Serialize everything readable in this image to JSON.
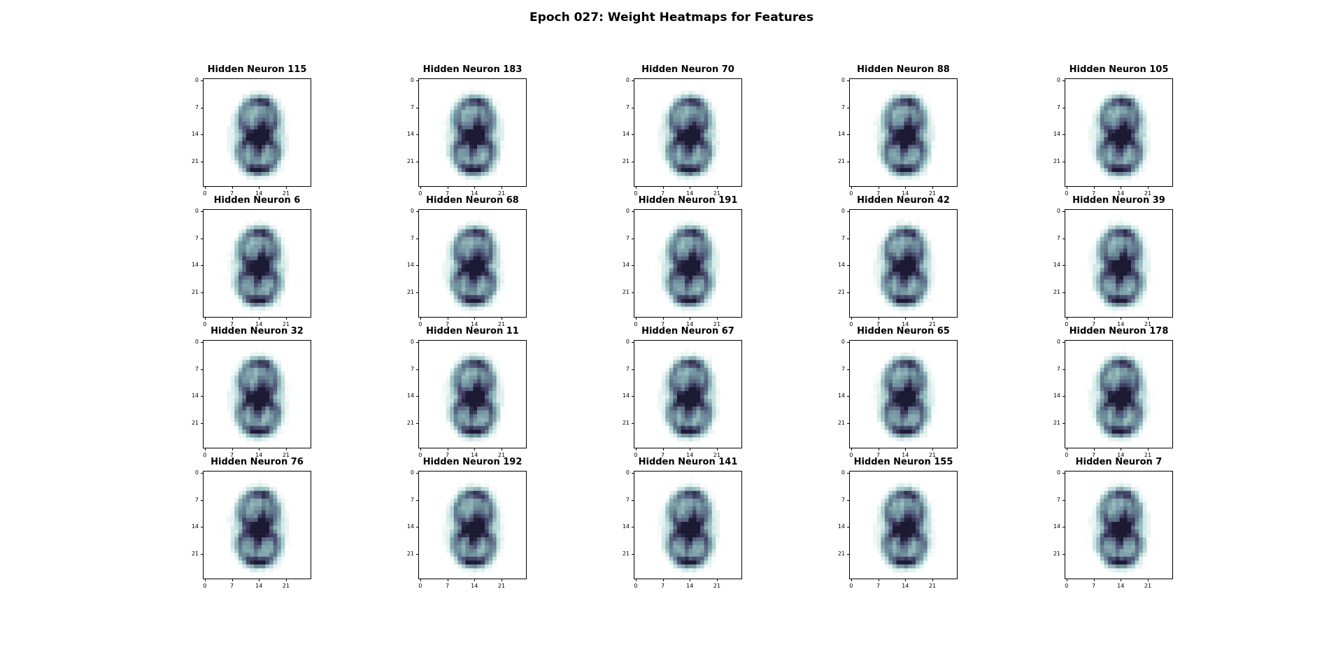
{
  "title": "Epoch 027: Weight Heatmaps for Features",
  "chart_data": {
    "type": "heatmap",
    "title": "Epoch 027: Weight Heatmaps for Features",
    "grid_rows": 4,
    "grid_cols": 5,
    "image_size": [
      28,
      28
    ],
    "colormap": [
      "#ffffff",
      "#d8ebea",
      "#9cc3c3",
      "#6f8f9c",
      "#4d4f73",
      "#1c1a33"
    ],
    "x_ticks": [
      0,
      7,
      14,
      21
    ],
    "y_ticks": [
      0,
      7,
      14,
      21
    ],
    "xlim": [
      0,
      28
    ],
    "ylim": [
      0,
      28
    ],
    "grid": false,
    "panels": [
      {
        "title": "Hidden Neuron 115"
      },
      {
        "title": "Hidden Neuron 183"
      },
      {
        "title": "Hidden Neuron 70"
      },
      {
        "title": "Hidden Neuron 88"
      },
      {
        "title": "Hidden Neuron 105"
      },
      {
        "title": "Hidden Neuron 6"
      },
      {
        "title": "Hidden Neuron 68"
      },
      {
        "title": "Hidden Neuron 191"
      },
      {
        "title": "Hidden Neuron 42"
      },
      {
        "title": "Hidden Neuron 39"
      },
      {
        "title": "Hidden Neuron 32"
      },
      {
        "title": "Hidden Neuron 11"
      },
      {
        "title": "Hidden Neuron 67"
      },
      {
        "title": "Hidden Neuron 65"
      },
      {
        "title": "Hidden Neuron 178"
      },
      {
        "title": "Hidden Neuron 76"
      },
      {
        "title": "Hidden Neuron 192"
      },
      {
        "title": "Hidden Neuron 141"
      },
      {
        "title": "Hidden Neuron 155"
      },
      {
        "title": "Hidden Neuron 7"
      }
    ]
  }
}
